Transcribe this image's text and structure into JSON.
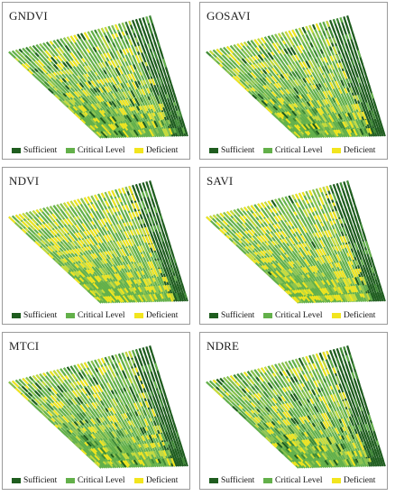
{
  "panels": [
    {
      "title": "GNDVI"
    },
    {
      "title": "GOSAVI"
    },
    {
      "title": "NDVI"
    },
    {
      "title": "SAVI"
    },
    {
      "title": "MTCI"
    },
    {
      "title": "NDRE"
    }
  ],
  "legend": {
    "items": [
      {
        "label": "Sufficient",
        "color": "#1f5d1f"
      },
      {
        "label": "Critical Level",
        "color": "#63b04a"
      },
      {
        "label": "Deficient",
        "color": "#f2e51e"
      }
    ]
  }
}
